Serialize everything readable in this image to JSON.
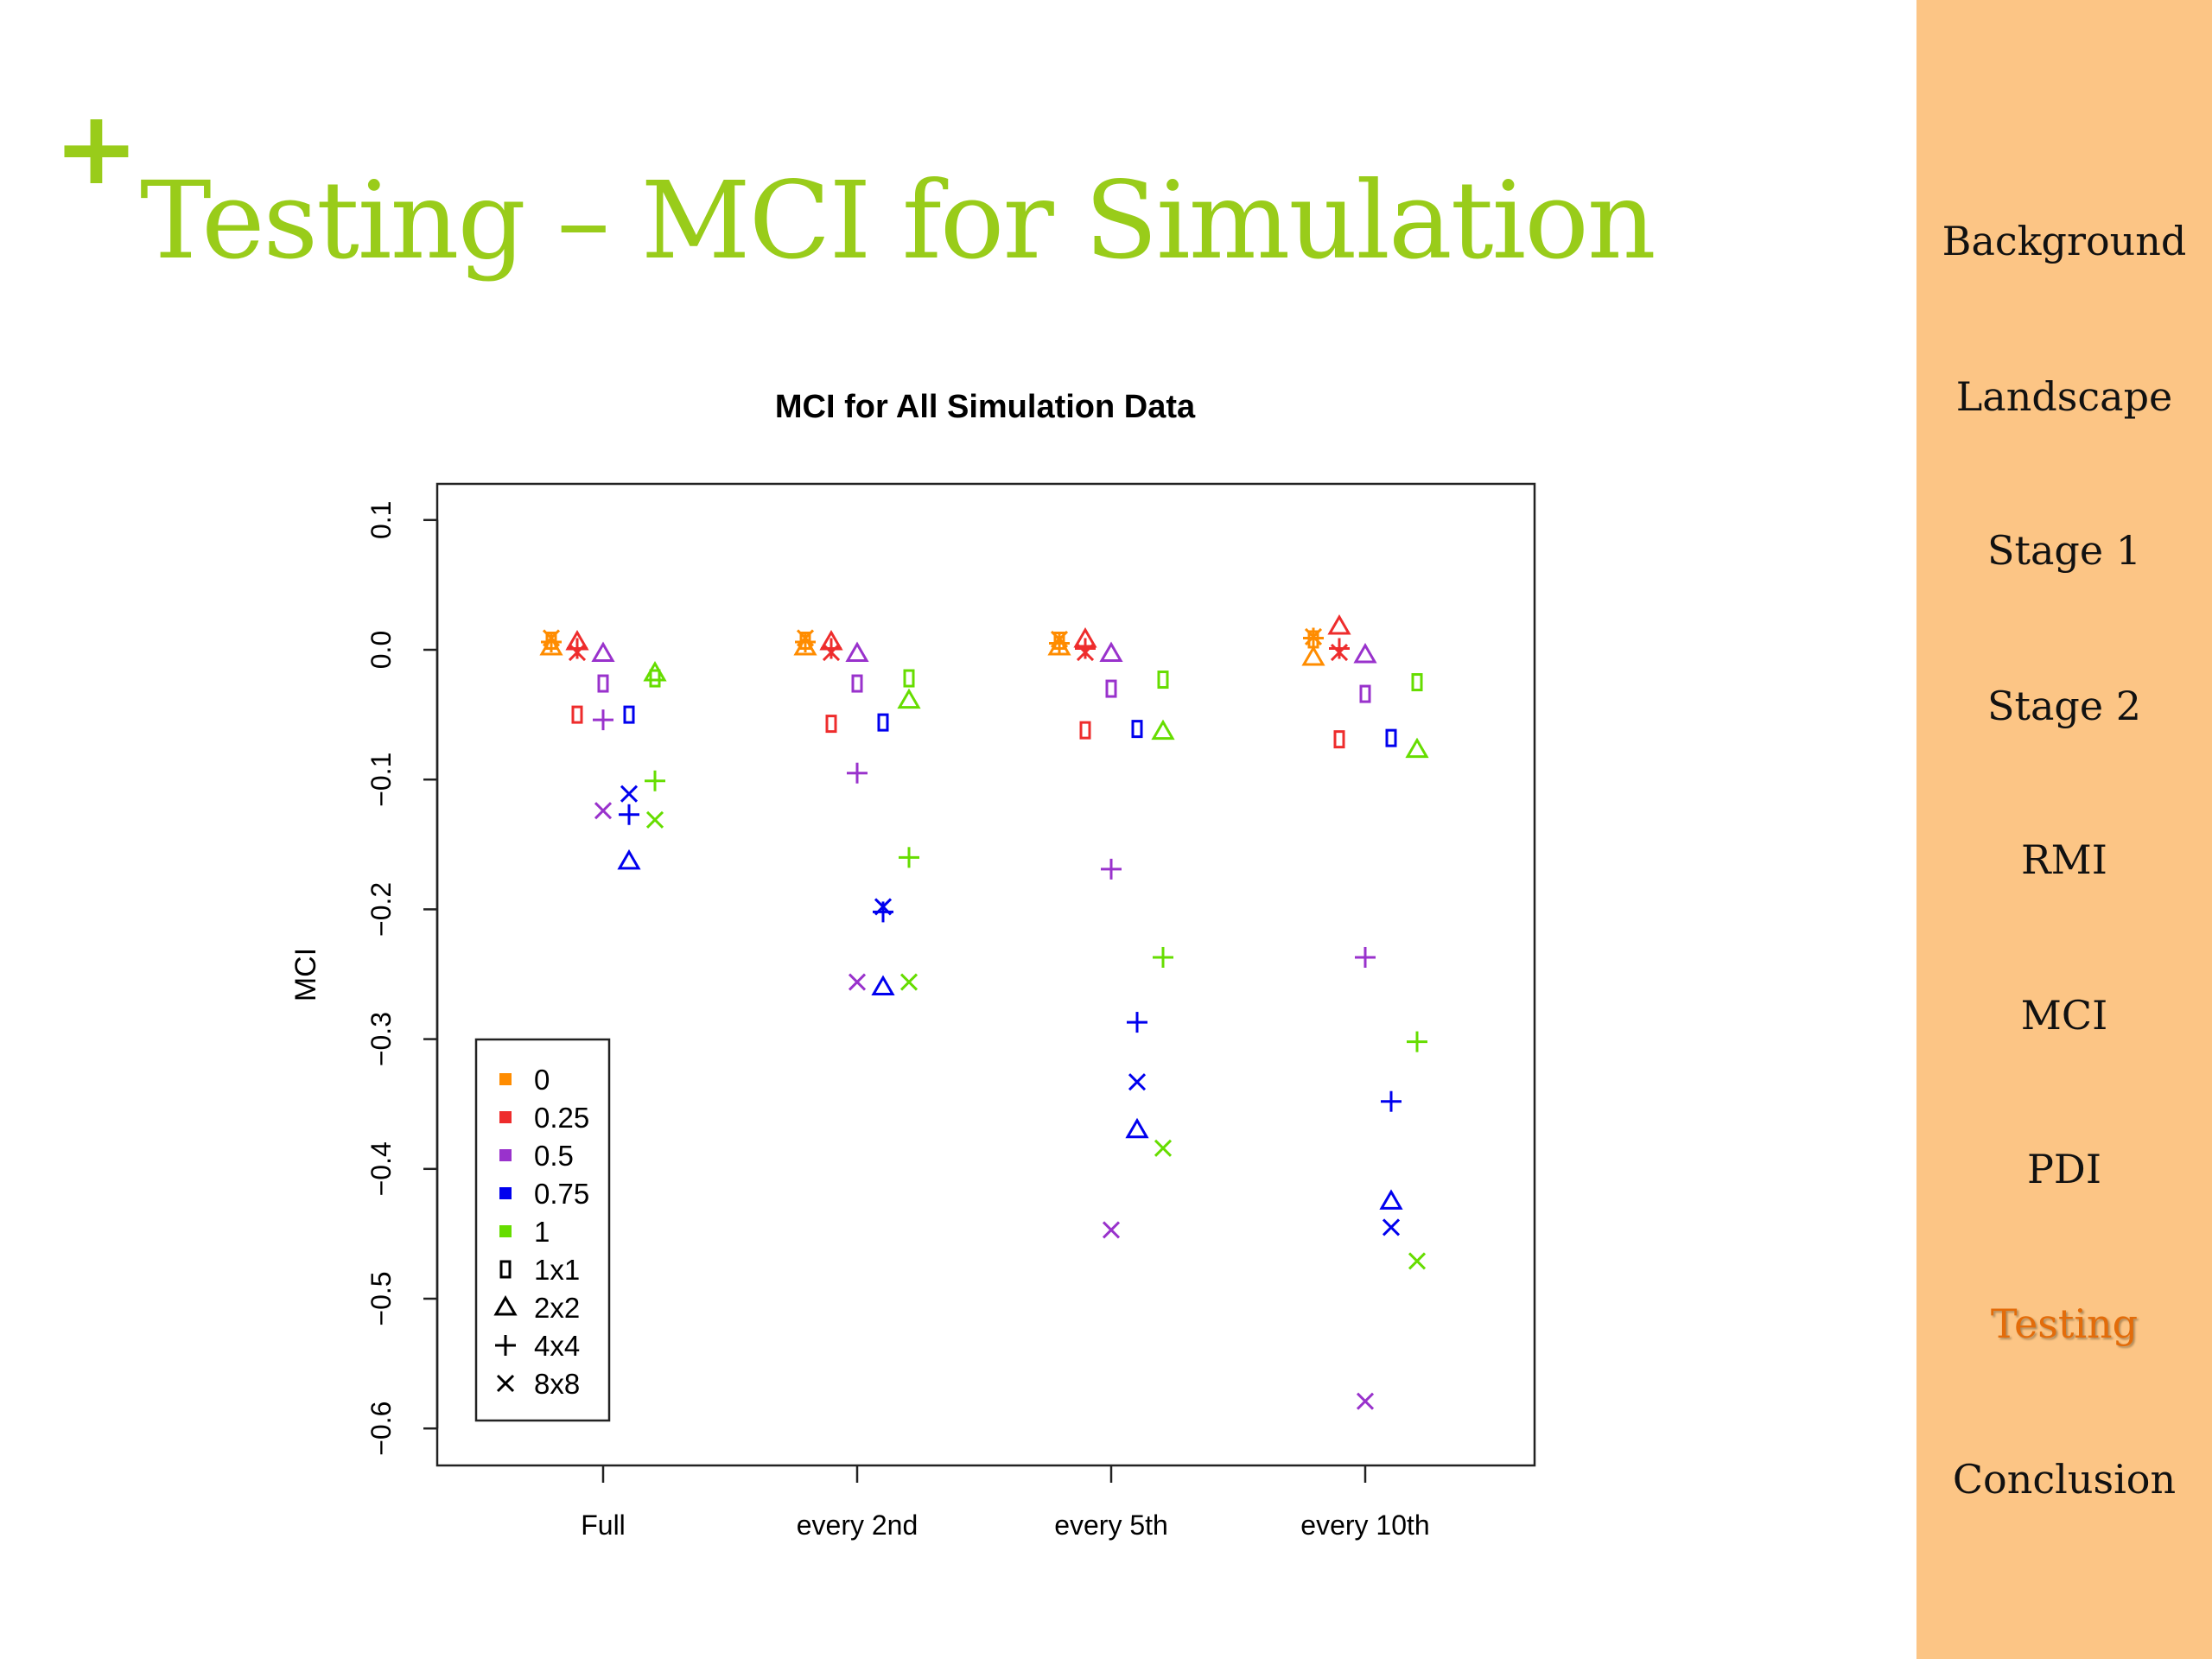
{
  "slide": {
    "title": "Testing – MCI for Simulation",
    "bullet_marker": "+",
    "title_color": "#99cc1a"
  },
  "nav": {
    "background": "#fcc585",
    "active_color": "#e36c0a",
    "items": [
      {
        "label": "Background",
        "active": false
      },
      {
        "label": "Landscape",
        "active": false
      },
      {
        "label": "Stage 1",
        "active": false
      },
      {
        "label": "Stage 2",
        "active": false
      },
      {
        "label": "RMI",
        "active": false
      },
      {
        "label": "MCI",
        "active": false
      },
      {
        "label": "PDI",
        "active": false
      },
      {
        "label": "Testing",
        "active": true
      },
      {
        "label": "Conclusion",
        "active": false
      }
    ]
  },
  "chart_data": {
    "type": "scatter",
    "title": "MCI for All Simulation Data",
    "xlabel": "",
    "ylabel": "MCI",
    "categories": [
      "Full",
      "every 2nd",
      "every 5th",
      "every 10th"
    ],
    "ylim": [
      -0.66,
      0.1
    ],
    "yticks": [
      0.1,
      0.0,
      -0.1,
      -0.2,
      -0.3,
      -0.4,
      -0.5,
      -0.6
    ],
    "ytick_labels": [
      "0.1",
      "0.0",
      "−0.1",
      "−0.2",
      "−0.3",
      "−0.4",
      "−0.5",
      "−0.6"
    ],
    "grid": false,
    "legend_position": "bottom-left",
    "color_legend": [
      {
        "label": "0",
        "color": "#ff8c00"
      },
      {
        "label": "0.25",
        "color": "#ee2c2c"
      },
      {
        "label": "0.5",
        "color": "#9932cc"
      },
      {
        "label": "0.75",
        "color": "#0000ee"
      },
      {
        "label": "1",
        "color": "#66dd00"
      }
    ],
    "shape_legend": [
      {
        "label": "1x1",
        "shape": "rect"
      },
      {
        "label": "2x2",
        "shape": "triangle"
      },
      {
        "label": "4x4",
        "shape": "plus"
      },
      {
        "label": "8x8",
        "shape": "cross"
      }
    ],
    "series": [
      {
        "level": "0",
        "shape": "1x1",
        "values": [
          0.007,
          0.007,
          0.007,
          0.008
        ]
      },
      {
        "level": "0",
        "shape": "2x2",
        "values": [
          0.002,
          0.002,
          0.002,
          -0.006
        ]
      },
      {
        "level": "0",
        "shape": "4x4",
        "values": [
          0.006,
          0.006,
          0.005,
          0.009
        ]
      },
      {
        "level": "0",
        "shape": "8x8",
        "values": [
          0.009,
          0.009,
          0.008,
          0.01
        ]
      },
      {
        "level": "0.25",
        "shape": "1x1",
        "values": [
          -0.05,
          -0.057,
          -0.062,
          -0.069
        ]
      },
      {
        "level": "0.25",
        "shape": "2x2",
        "values": [
          0.006,
          0.006,
          0.008,
          0.018
        ]
      },
      {
        "level": "0.25",
        "shape": "4x4",
        "values": [
          0.001,
          0.001,
          0.001,
          0.001
        ]
      },
      {
        "level": "0.25",
        "shape": "8x8",
        "values": [
          -0.002,
          -0.002,
          -0.002,
          -0.002
        ]
      },
      {
        "level": "0.5",
        "shape": "1x1",
        "values": [
          -0.026,
          -0.026,
          -0.03,
          -0.034
        ]
      },
      {
        "level": "0.5",
        "shape": "2x2",
        "values": [
          -0.003,
          -0.003,
          -0.003,
          -0.004
        ]
      },
      {
        "level": "0.5",
        "shape": "4x4",
        "values": [
          -0.054,
          -0.095,
          -0.169,
          -0.237
        ]
      },
      {
        "level": "0.5",
        "shape": "8x8",
        "values": [
          -0.124,
          -0.256,
          -0.447,
          -0.579
        ]
      },
      {
        "level": "0.75",
        "shape": "1x1",
        "values": [
          -0.05,
          -0.056,
          -0.061,
          -0.068
        ]
      },
      {
        "level": "0.75",
        "shape": "2x2",
        "values": [
          -0.163,
          -0.26,
          -0.37,
          -0.425
        ]
      },
      {
        "level": "0.75",
        "shape": "4x4",
        "values": [
          -0.127,
          -0.202,
          -0.287,
          -0.348
        ]
      },
      {
        "level": "0.75",
        "shape": "8x8",
        "values": [
          -0.111,
          -0.198,
          -0.333,
          -0.445
        ]
      },
      {
        "level": "1",
        "shape": "1x1",
        "values": [
          -0.022,
          -0.022,
          -0.023,
          -0.025
        ]
      },
      {
        "level": "1",
        "shape": "2x2",
        "values": [
          -0.018,
          -0.039,
          -0.063,
          -0.077
        ]
      },
      {
        "level": "1",
        "shape": "4x4",
        "values": [
          -0.101,
          -0.16,
          -0.237,
          -0.302
        ]
      },
      {
        "level": "1",
        "shape": "8x8",
        "values": [
          -0.131,
          -0.256,
          -0.384,
          -0.471
        ]
      }
    ]
  }
}
